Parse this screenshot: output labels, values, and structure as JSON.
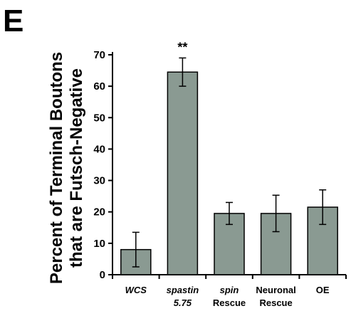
{
  "panel_letter": "E",
  "chart_data": {
    "type": "bar",
    "title": "",
    "ylabel_lines": [
      "Percent of Terminal Boutons",
      "that are Futsch-Negative"
    ],
    "xlabel": "",
    "ylim": [
      0,
      70
    ],
    "yticks": [
      0,
      10,
      20,
      30,
      40,
      50,
      60,
      70
    ],
    "grid": false,
    "bar_color": "#8a9a92",
    "categories": [
      {
        "lines": [
          "WCS"
        ],
        "italic": [
          true
        ]
      },
      {
        "lines": [
          "spastin",
          "5.75"
        ],
        "italic": [
          true,
          true
        ]
      },
      {
        "lines": [
          "spin",
          "Rescue"
        ],
        "italic": [
          true,
          false
        ]
      },
      {
        "lines": [
          "Neuronal",
          "Rescue"
        ],
        "italic": [
          false,
          false
        ]
      },
      {
        "lines": [
          "OE"
        ],
        "italic": [
          false
        ]
      }
    ],
    "values": [
      8,
      64.5,
      19.5,
      19.5,
      21.5
    ],
    "errors": [
      5.5,
      4.5,
      3.5,
      5.8,
      5.5
    ],
    "annotations": [
      {
        "category_index": 1,
        "text": "**"
      }
    ]
  }
}
